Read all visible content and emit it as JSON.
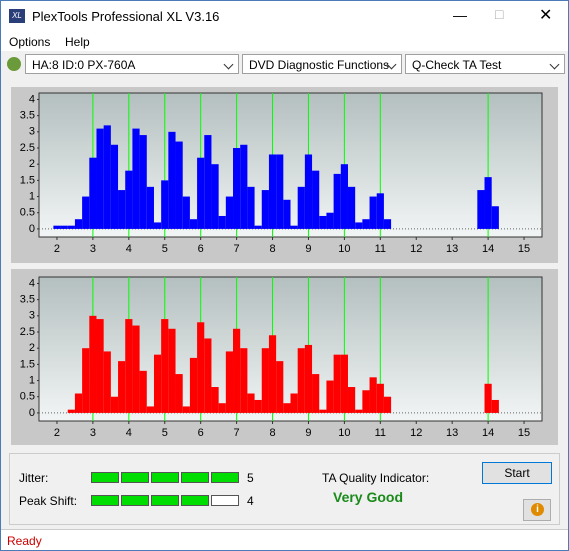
{
  "window": {
    "title": "PlexTools Professional XL V3.16",
    "menu": [
      "Options",
      "Help"
    ],
    "drive": "HA:8 ID:0  PX-760A",
    "function": "DVD Diagnostic Functions",
    "test": "Q-Check TA Test"
  },
  "chart_data": [
    {
      "type": "bar",
      "color": "#0000ff",
      "marker_color": "#00ff00",
      "xlim": [
        1.5,
        15.5
      ],
      "ylim": [
        -0.25,
        4.2
      ],
      "xticks": [
        2,
        3,
        4,
        5,
        6,
        7,
        8,
        9,
        10,
        11,
        12,
        13,
        14,
        15
      ],
      "yticks": [
        0,
        0.5,
        1,
        1.5,
        2,
        2.5,
        3,
        3.5,
        4
      ],
      "xmarkers": [
        3,
        4,
        5,
        6,
        7,
        8,
        9,
        10,
        11,
        14
      ],
      "x": [
        1.6,
        1.8,
        2.0,
        2.2,
        2.4,
        2.6,
        2.8,
        3.0,
        3.2,
        3.4,
        3.6,
        3.8,
        4.0,
        4.2,
        4.4,
        4.6,
        4.8,
        5.0,
        5.2,
        5.4,
        5.6,
        5.8,
        6.0,
        6.2,
        6.4,
        6.6,
        6.8,
        7.0,
        7.2,
        7.4,
        7.6,
        7.8,
        8.0,
        8.2,
        8.4,
        8.6,
        8.8,
        9.0,
        9.2,
        9.4,
        9.6,
        9.8,
        10.0,
        10.2,
        10.4,
        10.6,
        10.8,
        11.0,
        11.2,
        11.4,
        11.6,
        11.8,
        12.0,
        12.2,
        12.4,
        12.6,
        12.8,
        13.0,
        13.2,
        13.4,
        13.6,
        13.8,
        14.0,
        14.2,
        14.4
      ],
      "values": [
        0,
        0,
        0.1,
        0.1,
        0.1,
        0.3,
        1.0,
        2.2,
        3.1,
        3.2,
        2.6,
        1.2,
        1.8,
        3.1,
        2.9,
        1.3,
        0.2,
        1.5,
        3.0,
        2.7,
        1.0,
        0.3,
        2.2,
        2.9,
        2.0,
        0.4,
        1.0,
        2.5,
        2.6,
        1.3,
        0.1,
        1.2,
        2.3,
        2.3,
        0.9,
        0.1,
        1.3,
        2.3,
        1.8,
        0.4,
        0.5,
        1.7,
        2.0,
        1.3,
        0.2,
        0.3,
        1.0,
        1.1,
        0.3,
        0,
        0,
        0,
        0,
        0,
        0,
        0,
        0,
        0,
        0,
        0,
        0,
        1.2,
        1.6,
        0.7,
        0
      ]
    },
    {
      "type": "bar",
      "color": "#ff0000",
      "marker_color": "#00ff00",
      "xlim": [
        1.5,
        15.5
      ],
      "ylim": [
        -0.25,
        4.2
      ],
      "xticks": [
        2,
        3,
        4,
        5,
        6,
        7,
        8,
        9,
        10,
        11,
        12,
        13,
        14,
        15
      ],
      "yticks": [
        0,
        0.5,
        1,
        1.5,
        2,
        2.5,
        3,
        3.5,
        4
      ],
      "xmarkers": [
        3,
        4,
        5,
        6,
        7,
        8,
        9,
        10,
        11,
        14
      ],
      "x": [
        1.6,
        1.8,
        2.0,
        2.2,
        2.4,
        2.6,
        2.8,
        3.0,
        3.2,
        3.4,
        3.6,
        3.8,
        4.0,
        4.2,
        4.4,
        4.6,
        4.8,
        5.0,
        5.2,
        5.4,
        5.6,
        5.8,
        6.0,
        6.2,
        6.4,
        6.6,
        6.8,
        7.0,
        7.2,
        7.4,
        7.6,
        7.8,
        8.0,
        8.2,
        8.4,
        8.6,
        8.8,
        9.0,
        9.2,
        9.4,
        9.6,
        9.8,
        10.0,
        10.2,
        10.4,
        10.6,
        10.8,
        11.0,
        11.2,
        11.4,
        11.6,
        11.8,
        12.0,
        12.2,
        12.4,
        12.6,
        12.8,
        13.0,
        13.2,
        13.4,
        13.6,
        13.8,
        14.0,
        14.2,
        14.4
      ],
      "values": [
        0,
        0,
        0,
        0,
        0.1,
        0.6,
        2.0,
        3.0,
        2.9,
        1.9,
        0.5,
        1.6,
        2.9,
        2.7,
        1.3,
        0.2,
        1.8,
        2.9,
        2.6,
        1.2,
        0.2,
        1.7,
        2.8,
        2.3,
        0.8,
        0.3,
        1.9,
        2.6,
        2.0,
        0.6,
        0.4,
        2.0,
        2.4,
        1.6,
        0.3,
        0.6,
        2.0,
        2.1,
        1.2,
        0.1,
        1.0,
        1.8,
        1.8,
        0.8,
        0.1,
        0.7,
        1.1,
        0.9,
        0.5,
        0,
        0,
        0,
        0,
        0,
        0,
        0,
        0,
        0,
        0,
        0,
        0,
        0,
        0.9,
        0.4,
        0
      ]
    }
  ],
  "results": {
    "jitter_label": "Jitter:",
    "jitter": 5,
    "peak_shift_label": "Peak Shift:",
    "peak_shift": 4,
    "ta_label": "TA Quality Indicator:",
    "ta_value": "Very Good",
    "start": "Start"
  },
  "status": "Ready"
}
